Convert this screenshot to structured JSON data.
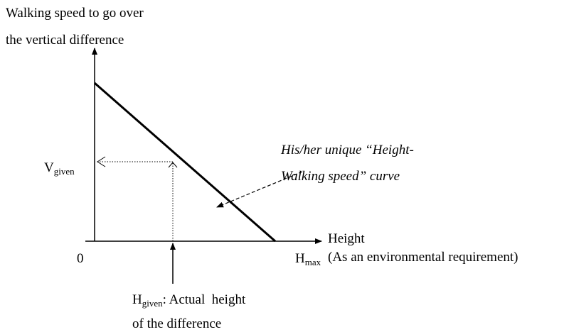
{
  "y_axis_label": [
    "Walking speed to go over",
    "the vertical difference"
  ],
  "v_given": {
    "main": "V",
    "sub": "given"
  },
  "origin": "0",
  "h_max": {
    "main": "H",
    "sub": "max"
  },
  "x_axis_label": [
    "Height",
    "(As an environmental requirement)"
  ],
  "curve_label": [
    "His/her unique “Height-",
    "Walking speed” curve"
  ],
  "h_given": {
    "main": "H",
    "sub": "given",
    "rest": ": Actual  height",
    "line2": "of the difference"
  }
}
